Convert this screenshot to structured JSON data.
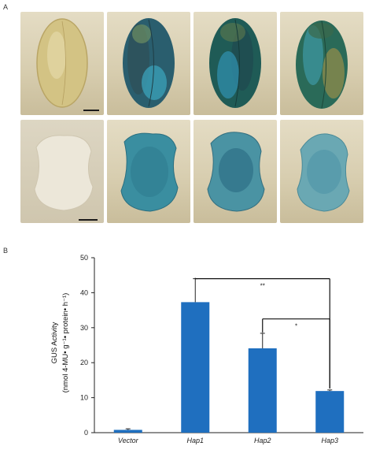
{
  "panel_a": {
    "letter": "A",
    "rows": [
      [
        "whole-seed-vector",
        "whole-seed-hap1",
        "whole-seed-hap2",
        "whole-seed-hap3"
      ],
      [
        "cross-section-vector",
        "cross-section-hap1",
        "cross-section-hap2",
        "cross-section-hap3"
      ]
    ]
  },
  "panel_b": {
    "letter": "B"
  },
  "chart_data": {
    "type": "bar",
    "categories": [
      "Vector",
      "Hap1",
      "Hap2",
      "Hap3"
    ],
    "values": [
      0.8,
      37.3,
      24.1,
      11.9
    ],
    "errors": [
      0.3,
      6.7,
      4.3,
      0.3
    ],
    "ylabel_line1": "GUS Activity",
    "ylabel_line2": "(nmol 4-MU• g⁻¹• protein• h⁻¹)",
    "ylim": [
      0,
      50
    ],
    "yticks": [
      0,
      10,
      20,
      30,
      40,
      50
    ],
    "bar_color": "#1f6fbf",
    "significance": [
      {
        "from": "Hap1",
        "to": "Hap3",
        "label": "**"
      },
      {
        "from": "Hap2",
        "to": "Hap3",
        "label": "*"
      }
    ]
  }
}
